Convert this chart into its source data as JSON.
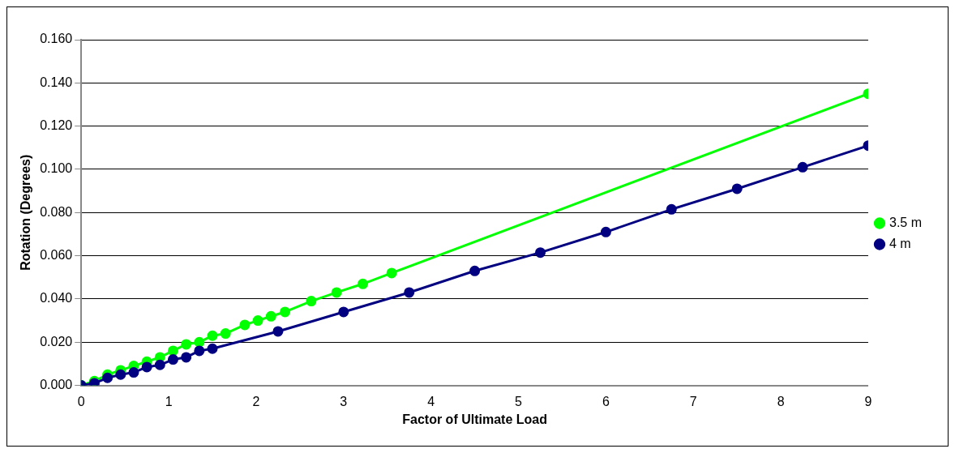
{
  "chart_data": {
    "type": "line",
    "xlabel": "Factor of Ultimate Load",
    "ylabel": "Rotation (Degrees)",
    "xlim": [
      0,
      9
    ],
    "xticks": [
      0,
      1,
      2,
      3,
      4,
      5,
      6,
      7,
      8,
      9
    ],
    "ylim": [
      0,
      0.16
    ],
    "yticks": [
      {
        "value": 0,
        "label": "0.000"
      },
      {
        "value": 0.02,
        "label": "0.020"
      },
      {
        "value": 0.04,
        "label": "0.040"
      },
      {
        "value": 0.06,
        "label": "0.060"
      },
      {
        "value": 0.08,
        "label": "0.080"
      },
      {
        "value": 0.1,
        "label": "0.100"
      },
      {
        "value": 0.12,
        "label": "0.120"
      },
      {
        "value": 0.14,
        "label": "0.140"
      },
      {
        "value": 0.16,
        "label": "0.160"
      }
    ],
    "grid": "y",
    "legend": "right",
    "marker": "circle",
    "line_style": "solid",
    "series": [
      {
        "name": "3.5 m",
        "color": "#00ff00",
        "x": [
          0,
          0.15,
          0.3,
          0.45,
          0.6,
          0.75,
          0.9,
          1.05,
          1.2,
          1.35,
          1.5,
          1.65,
          1.87,
          2.02,
          2.17,
          2.33,
          2.63,
          2.92,
          3.22,
          3.55,
          9
        ],
        "values": [
          0,
          0.002,
          0.005,
          0.007,
          0.009,
          0.011,
          0.013,
          0.016,
          0.019,
          0.02,
          0.023,
          0.024,
          0.028,
          0.03,
          0.032,
          0.034,
          0.039,
          0.043,
          0.047,
          0.052,
          0.135
        ]
      },
      {
        "name": "4 m",
        "color": "#000080",
        "x": [
          0,
          0.15,
          0.3,
          0.45,
          0.6,
          0.75,
          0.9,
          1.05,
          1.2,
          1.35,
          1.5,
          2.25,
          3,
          3.75,
          4.5,
          5.25,
          6,
          6.75,
          7.5,
          8.25,
          9
        ],
        "values": [
          0,
          0.001,
          0.0035,
          0.005,
          0.006,
          0.0085,
          0.0095,
          0.012,
          0.013,
          0.016,
          0.017,
          0.025,
          0.034,
          0.043,
          0.053,
          0.0615,
          0.071,
          0.0815,
          0.091,
          0.101,
          0.111
        ]
      }
    ]
  }
}
